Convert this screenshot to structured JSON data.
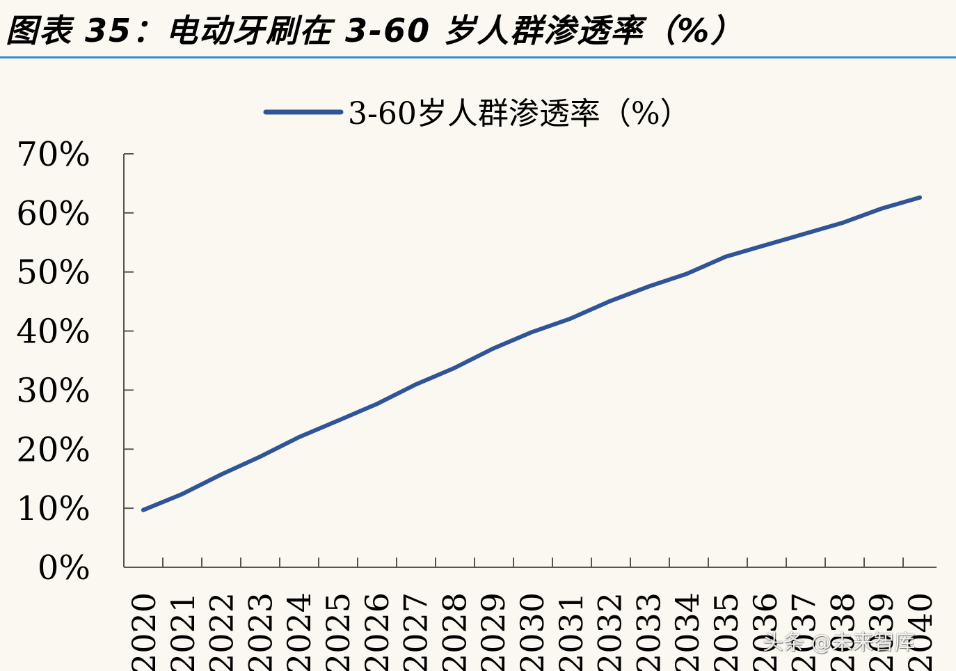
{
  "header": {
    "title": "图表 35：电动牙刷在 3-60 岁人群渗透率（%）"
  },
  "watermark": {
    "text": "头条 @未来智库"
  },
  "colors": {
    "background": "#fbf8f1",
    "title_rule": "#2f8fcf",
    "series_line": "#2f5597",
    "axis": "#555555",
    "text": "#000000"
  },
  "chart_data": {
    "type": "line",
    "title": "",
    "xlabel": "",
    "ylabel": "",
    "legend_position": "top-center",
    "grid": false,
    "ylim": [
      0,
      70
    ],
    "y_ticks": [
      "0%",
      "10%",
      "20%",
      "30%",
      "40%",
      "50%",
      "60%",
      "70%"
    ],
    "x": [
      "2020",
      "2021",
      "2022",
      "2023",
      "2024",
      "2025",
      "2026",
      "2027",
      "2028",
      "2029",
      "2030",
      "2031",
      "2032",
      "2033",
      "2034",
      "2035",
      "2036",
      "2037",
      "2038",
      "2039",
      "2040"
    ],
    "series": [
      {
        "name": "3-60岁人群渗透率（%）",
        "values": [
          9.7,
          12.4,
          15.7,
          18.7,
          22.0,
          24.8,
          27.6,
          30.9,
          33.7,
          37.0,
          39.8,
          42.1,
          45.0,
          47.5,
          49.7,
          52.6,
          54.5,
          56.4,
          58.3,
          60.7,
          62.6
        ]
      }
    ]
  }
}
